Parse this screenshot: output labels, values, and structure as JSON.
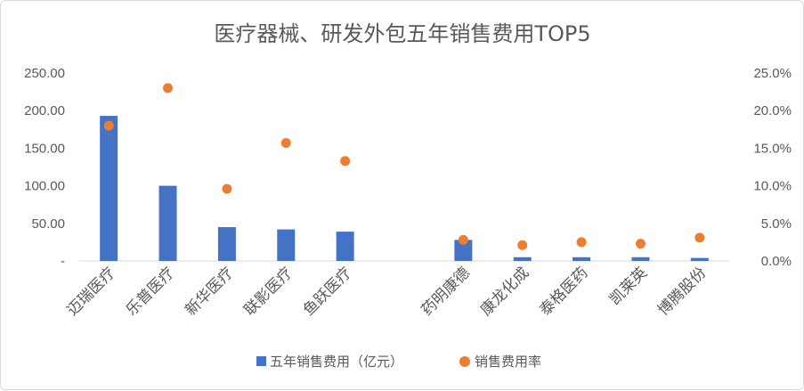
{
  "chart_data": {
    "type": "bar",
    "title": "医疗器械、研发外包五年销售费用TOP5",
    "categories": [
      "迈瑞医疗",
      "乐普医疗",
      "新华医疗",
      "联影医疗",
      "鱼跃医疗",
      "",
      "药明康德",
      "康龙化成",
      "泰格医药",
      "凯莱英",
      "博腾股份"
    ],
    "series": [
      {
        "name": "五年销售费用（亿元）",
        "type": "bar",
        "axis": "left",
        "color": "#4472c4",
        "values": [
          193,
          100,
          45,
          42,
          39,
          null,
          28,
          5,
          5,
          5,
          4
        ]
      },
      {
        "name": "销售费用率",
        "type": "scatter",
        "axis": "right",
        "color": "#ed7d31",
        "values": [
          0.18,
          0.23,
          0.096,
          0.157,
          0.133,
          null,
          0.028,
          0.021,
          0.025,
          0.023,
          0.031
        ]
      }
    ],
    "y_left": {
      "min": 0,
      "max": 250,
      "ticks": [
        0,
        50,
        100,
        150,
        200,
        250
      ],
      "tick_labels": [
        "-",
        "50.00",
        "100.00",
        "150.00",
        "200.00",
        "250.00"
      ]
    },
    "y_right": {
      "min": 0,
      "max": 0.25,
      "ticks": [
        0,
        0.05,
        0.1,
        0.15,
        0.2,
        0.25
      ],
      "tick_labels": [
        "0.0%",
        "5.0%",
        "10.0%",
        "15.0%",
        "20.0%",
        "25.0%"
      ]
    },
    "xlabel": "",
    "ylabel": "",
    "grid": false,
    "legend_position": "bottom"
  },
  "colors": {
    "bar": "#4472c4",
    "dot": "#ed7d31",
    "axis": "#d9d9d9",
    "text": "#595959"
  }
}
